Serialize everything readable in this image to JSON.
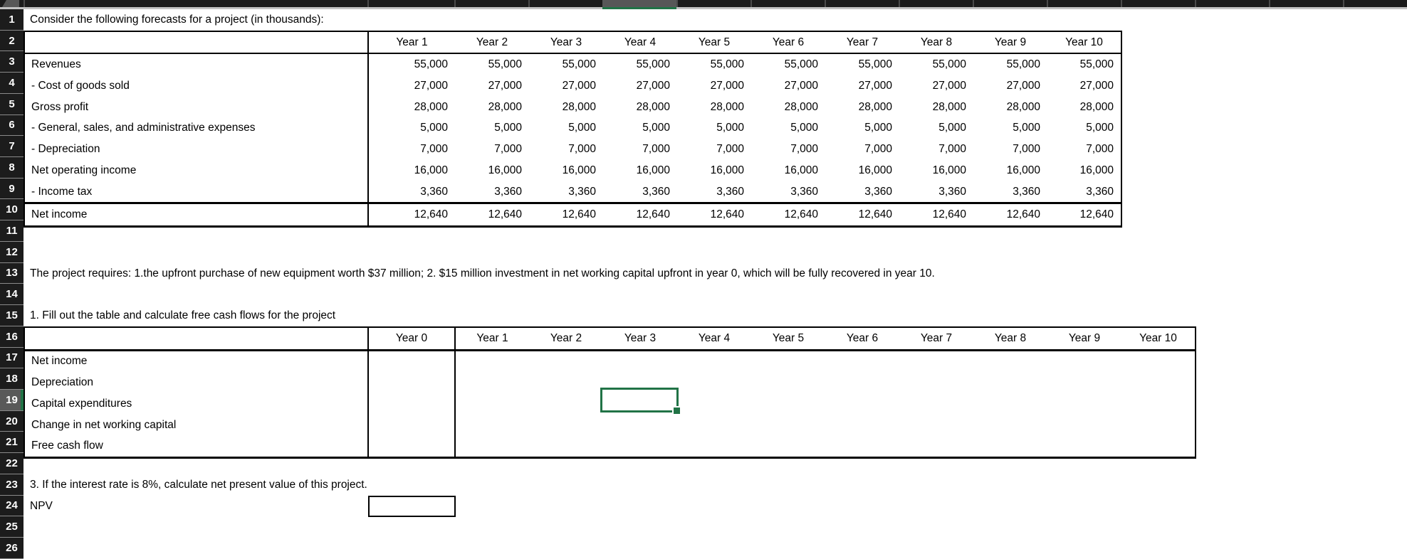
{
  "colors": {
    "selection_green": "#217346",
    "header_dark": "#1b1b1b",
    "header_highlight_gray": "#595959",
    "strip_underline_gray": "#c2c2c2"
  },
  "row_numbers": [
    "1",
    "2",
    "3",
    "4",
    "5",
    "6",
    "7",
    "8",
    "9",
    "10",
    "11",
    "12",
    "13",
    "14",
    "15",
    "16",
    "17",
    "18",
    "19",
    "20",
    "21",
    "22",
    "23",
    "24",
    "25",
    "26"
  ],
  "cells_text": {
    "a1": "Consider the following forecasts for a project (in thousands):",
    "a13": "The project requires: 1.the upfront purchase of new equipment worth $37 million; 2. $15 million investment in net working capital upfront in year 0, which will be fully recovered in year 10.",
    "a15": "1. Fill out the table and calculate free cash flows for the project",
    "a23": "3. If the interest rate is 8%, calculate net present value of this project.",
    "a24": "NPV"
  },
  "forecast_table": {
    "header": [
      "Year 1",
      "Year 2",
      "Year 3",
      "Year 4",
      "Year 5",
      "Year 6",
      "Year 7",
      "Year 8",
      "Year 9",
      "Year 10"
    ],
    "rows": [
      {
        "label": "Revenues",
        "values": [
          "55,000",
          "55,000",
          "55,000",
          "55,000",
          "55,000",
          "55,000",
          "55,000",
          "55,000",
          "55,000",
          "55,000"
        ]
      },
      {
        "label": "- Cost of goods sold",
        "values": [
          "27,000",
          "27,000",
          "27,000",
          "27,000",
          "27,000",
          "27,000",
          "27,000",
          "27,000",
          "27,000",
          "27,000"
        ]
      },
      {
        "label": "Gross profit",
        "values": [
          "28,000",
          "28,000",
          "28,000",
          "28,000",
          "28,000",
          "28,000",
          "28,000",
          "28,000",
          "28,000",
          "28,000"
        ]
      },
      {
        "label": "- General, sales, and administrative expenses",
        "values": [
          "5,000",
          "5,000",
          "5,000",
          "5,000",
          "5,000",
          "5,000",
          "5,000",
          "5,000",
          "5,000",
          "5,000"
        ]
      },
      {
        "label": "- Depreciation",
        "values": [
          "7,000",
          "7,000",
          "7,000",
          "7,000",
          "7,000",
          "7,000",
          "7,000",
          "7,000",
          "7,000",
          "7,000"
        ]
      },
      {
        "label": "Net operating income",
        "values": [
          "16,000",
          "16,000",
          "16,000",
          "16,000",
          "16,000",
          "16,000",
          "16,000",
          "16,000",
          "16,000",
          "16,000"
        ]
      },
      {
        "label": "- Income tax",
        "values": [
          "3,360",
          "3,360",
          "3,360",
          "3,360",
          "3,360",
          "3,360",
          "3,360",
          "3,360",
          "3,360",
          "3,360"
        ]
      },
      {
        "label": "Net income",
        "values": [
          "12,640",
          "12,640",
          "12,640",
          "12,640",
          "12,640",
          "12,640",
          "12,640",
          "12,640",
          "12,640",
          "12,640"
        ]
      }
    ]
  },
  "fcf_table": {
    "header": [
      "Year 0",
      "Year 1",
      "Year 2",
      "Year 3",
      "Year 4",
      "Year 5",
      "Year 6",
      "Year 7",
      "Year 8",
      "Year 9",
      "Year 10"
    ],
    "rows": [
      {
        "label": "Net income",
        "values": [
          "",
          "",
          "",
          "",
          "",
          "",
          "",
          "",
          "",
          "",
          ""
        ]
      },
      {
        "label": "Depreciation",
        "values": [
          "",
          "",
          "",
          "",
          "",
          "",
          "",
          "",
          "",
          "",
          ""
        ]
      },
      {
        "label": "Capital expenditures",
        "values": [
          "",
          "",
          "",
          "",
          "",
          "",
          "",
          "",
          "",
          "",
          ""
        ]
      },
      {
        "label": "Change in net working capital",
        "values": [
          "",
          "",
          "",
          "",
          "",
          "",
          "",
          "",
          "",
          "",
          ""
        ]
      },
      {
        "label": "Free cash flow",
        "values": [
          "",
          "",
          "",
          "",
          "",
          "",
          "",
          "",
          "",
          "",
          ""
        ]
      }
    ]
  },
  "selection": {
    "row": "19",
    "column_label": "Year 3"
  },
  "npv_input": {
    "value": ""
  }
}
